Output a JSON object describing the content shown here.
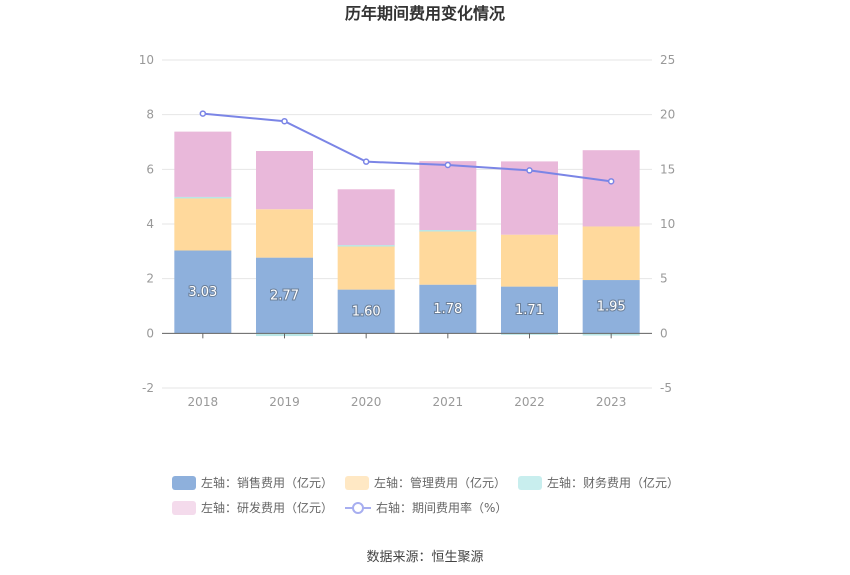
{
  "chart_data": {
    "type": "bar",
    "title": "历年期间费用变化情况",
    "categories": [
      "2018",
      "2019",
      "2020",
      "2021",
      "2022",
      "2023"
    ],
    "series": [
      {
        "name": "左轴：销售费用（亿元）",
        "axis": "left",
        "stack": "total",
        "color": "#8eb0dc",
        "labels": true,
        "values": [
          3.03,
          2.77,
          1.6,
          1.78,
          1.71,
          1.95
        ]
      },
      {
        "name": "左轴：管理费用（亿元）",
        "axis": "left",
        "stack": "total",
        "color": "#ffd99c",
        "values": [
          1.92,
          1.77,
          1.62,
          1.98,
          1.9,
          1.96
        ]
      },
      {
        "name": "左轴：财务费用（亿元）",
        "axis": "left",
        "stack": "total",
        "color": "#b9e6e6",
        "values": [
          0.04,
          -0.1,
          0.01,
          0.02,
          -0.02,
          -0.08
        ]
      },
      {
        "name": "左轴：研发费用（亿元）",
        "axis": "left",
        "stack": "total",
        "color": "#e9b8da",
        "values": [
          2.39,
          2.13,
          2.04,
          2.52,
          2.68,
          2.79
        ]
      },
      {
        "name": "右轴：期间费用率（%）",
        "axis": "right",
        "type": "line",
        "color": "#7b85e6",
        "values": [
          20.1,
          19.4,
          15.7,
          15.4,
          14.9,
          13.9
        ]
      }
    ],
    "y_left": {
      "ylim": [
        -2,
        10
      ],
      "ticks": [
        "-2",
        "0",
        "2",
        "4",
        "6",
        "8",
        "10"
      ]
    },
    "y_right": {
      "ylim": [
        -5,
        25
      ],
      "ticks": [
        "-5",
        "0",
        "5",
        "10",
        "15",
        "20",
        "25"
      ]
    },
    "grid": true,
    "legend_position": "bottom"
  },
  "source": "数据来源：恒生聚源"
}
